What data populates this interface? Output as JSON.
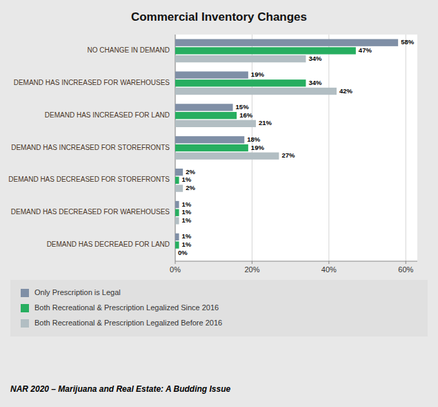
{
  "chart_data": {
    "type": "bar",
    "orientation": "horizontal",
    "title": "Commercial Inventory Changes",
    "categories": [
      "NO CHANGE IN DEMAND",
      "DEMAND HAS INCREASED FOR WAREHOUSES",
      "DEMAND HAS INCREASED FOR LAND",
      "DEMAND HAS INCREASED FOR STOREFRONTS",
      "DEMAND HAS DECREASED FOR STOREFRONTS",
      "DEMAND HAS DECREASED FOR WAREHOUSES",
      "DEMAND HAS DECREAED FOR LAND"
    ],
    "series": [
      {
        "name": "Only Prescription is Legal",
        "color": "#7f8fa6",
        "values": [
          58,
          19,
          15,
          18,
          2,
          1,
          1
        ],
        "value_labels": [
          "58%",
          "19%",
          "15%",
          "18%",
          "2%",
          "1%",
          "1%"
        ]
      },
      {
        "name": "Both Recreational & Prescription Legalized Since 2016",
        "color": "#27ae60",
        "values": [
          47,
          34,
          16,
          19,
          1,
          1,
          1
        ],
        "value_labels": [
          "47%",
          "34%",
          "16%",
          "19%",
          "1%",
          "1%",
          "1%"
        ]
      },
      {
        "name": "Both Recreational & Prescription Legalized Before 2016",
        "color": "#b2bec3",
        "values": [
          34,
          42,
          21,
          27,
          2,
          1,
          0
        ],
        "value_labels": [
          "34%",
          "42%",
          "21%",
          "27%",
          "2%",
          "1%",
          "0%"
        ]
      }
    ],
    "xlim": [
      0,
      63
    ],
    "xticks": [
      {
        "value": 0,
        "label": "0%"
      },
      {
        "value": 20,
        "label": "20%"
      },
      {
        "value": 40,
        "label": "40%"
      },
      {
        "value": 60,
        "label": "60%"
      }
    ],
    "grid": true,
    "data_labels": true,
    "legend": "bottom",
    "annotations": [
      "NAR 2020 – Marijuana and Real Estate: A Budding Issue"
    ]
  }
}
